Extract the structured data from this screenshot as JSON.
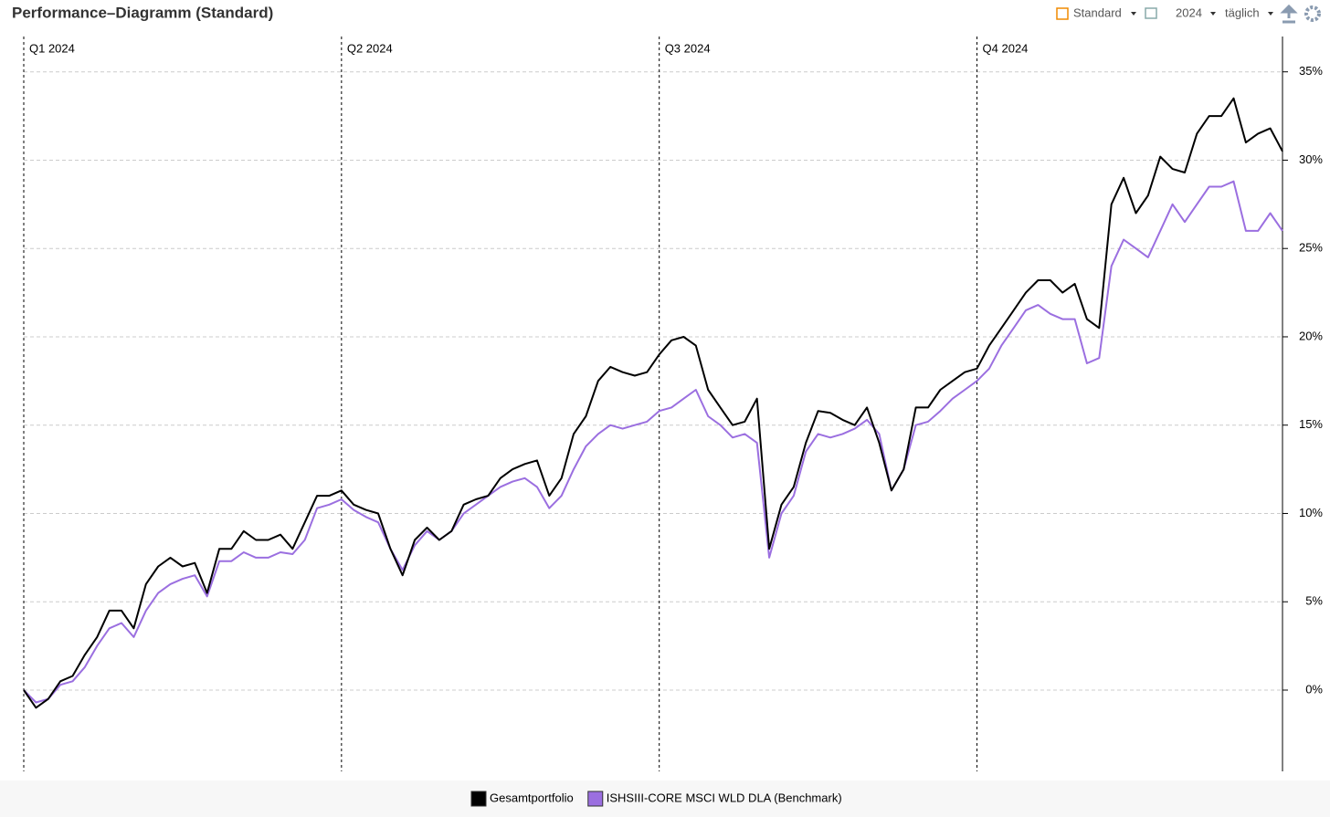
{
  "header": {
    "title": "Performance–Diagramm (Standard)",
    "view": "Standard",
    "year": "2024",
    "interval": "täglich"
  },
  "chart_data": {
    "type": "line",
    "categories": [
      "Q1 2024",
      null,
      null,
      null,
      null,
      null,
      null,
      null,
      null,
      null,
      null,
      null,
      null,
      null,
      null,
      null,
      null,
      null,
      null,
      null,
      null,
      null,
      null,
      null,
      null,
      null,
      "Q2 2024",
      null,
      null,
      null,
      null,
      null,
      null,
      null,
      null,
      null,
      null,
      null,
      null,
      null,
      null,
      null,
      null,
      null,
      null,
      null,
      null,
      null,
      null,
      null,
      null,
      null,
      "Q3 2024",
      null,
      null,
      null,
      null,
      null,
      null,
      null,
      null,
      null,
      null,
      null,
      null,
      null,
      null,
      null,
      null,
      null,
      null,
      null,
      null,
      null,
      null,
      null,
      null,
      null,
      "Q4 2024",
      null,
      null,
      null,
      null,
      null,
      null,
      null,
      null,
      null,
      null,
      null,
      null,
      null,
      null,
      null,
      null,
      null,
      null,
      null,
      null,
      null,
      null,
      null,
      null,
      null
    ],
    "series": [
      {
        "name": "Gesamtportfolio",
        "color": "#000000",
        "values": [
          0,
          -1.0,
          -0.5,
          0.5,
          0.8,
          2,
          3,
          4.5,
          4.5,
          3.5,
          6,
          7,
          7.5,
          7,
          7.2,
          5.5,
          8,
          8,
          9,
          8.5,
          8.5,
          8.8,
          8,
          9.5,
          11,
          11,
          11.3,
          10.5,
          10.2,
          10,
          8,
          6.5,
          8.5,
          9.2,
          8.5,
          9,
          10.5,
          10.8,
          11,
          12,
          12.5,
          12.8,
          13,
          11,
          12,
          14.5,
          15.5,
          17.5,
          18.3,
          18,
          17.8,
          18,
          19,
          19.8,
          20,
          19.5,
          17,
          16,
          15,
          15.2,
          16.5,
          8,
          10.5,
          11.5,
          14,
          15.8,
          15.7,
          15.3,
          15,
          16,
          14,
          11.3,
          12.5,
          16,
          16,
          17,
          17.5,
          18,
          18.2,
          19.5,
          20.5,
          21.5,
          22.5,
          23.2,
          23.2,
          22.5,
          23,
          21,
          20.5,
          27.5,
          29,
          27,
          28,
          30.2,
          29.5,
          29.3,
          31.5,
          32.5,
          32.5,
          33.5,
          31,
          31.5,
          31.8,
          30.5
        ]
      },
      {
        "name": "ISHSIII-CORE MSCI WLD DLA (Benchmark)",
        "color": "#9b6fe0",
        "values": [
          0,
          -0.7,
          -0.5,
          0.3,
          0.5,
          1.3,
          2.5,
          3.5,
          3.8,
          3.0,
          4.5,
          5.5,
          6,
          6.3,
          6.5,
          5.3,
          7.3,
          7.3,
          7.8,
          7.5,
          7.5,
          7.8,
          7.7,
          8.5,
          10.3,
          10.5,
          10.8,
          10.2,
          9.8,
          9.5,
          8,
          6.8,
          8.2,
          9,
          8.5,
          9,
          10,
          10.5,
          11,
          11.5,
          11.8,
          12,
          11.5,
          10.3,
          11,
          12.5,
          13.8,
          14.5,
          15,
          14.8,
          15,
          15.2,
          15.8,
          16,
          16.5,
          17,
          15.5,
          15,
          14.3,
          14.5,
          14,
          7.5,
          10,
          11,
          13.5,
          14.5,
          14.3,
          14.5,
          14.8,
          15.3,
          14.5,
          11.3,
          12.5,
          15,
          15.2,
          15.8,
          16.5,
          17,
          17.5,
          18.2,
          19.5,
          20.5,
          21.5,
          21.8,
          21.3,
          21,
          21,
          18.5,
          18.8,
          24,
          25.5,
          25,
          24.5,
          26,
          27.5,
          26.5,
          27.5,
          28.5,
          28.5,
          28.8,
          26,
          26,
          27,
          26
        ]
      }
    ],
    "ylim": [
      -4.6,
      37
    ],
    "yticks": [
      {
        "value": 0,
        "label": "0%"
      },
      {
        "value": 5,
        "label": "5%"
      },
      {
        "value": 10,
        "label": "10%"
      },
      {
        "value": 15,
        "label": "15%"
      },
      {
        "value": 20,
        "label": "20%"
      },
      {
        "value": 25,
        "label": "25%"
      },
      {
        "value": 30,
        "label": "30%"
      },
      {
        "value": 35,
        "label": "35%"
      }
    ],
    "grid": true,
    "y_axis_side": "right",
    "legend": "bottom"
  }
}
